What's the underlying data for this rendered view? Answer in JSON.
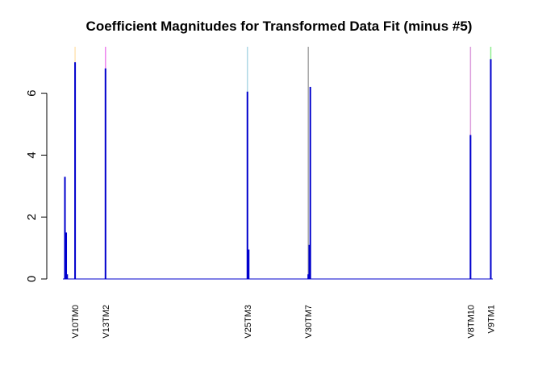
{
  "chart_data": {
    "type": "bar",
    "title": "Coefficient Magnitudes for Transformed Data Fit (minus #5)",
    "xlabel": "",
    "ylabel": "",
    "ylim": [
      0,
      7.5
    ],
    "y_ticks": [
      0,
      2,
      4,
      6
    ],
    "x_range": [
      0,
      212
    ],
    "bar_color": "#0000CD",
    "labeled_categories": [
      {
        "label": "V10TM0",
        "x": 6
      },
      {
        "label": "V13TM2",
        "x": 21
      },
      {
        "label": "V25TM3",
        "x": 91
      },
      {
        "label": "V30TM7",
        "x": 121
      },
      {
        "label": "V8TM10",
        "x": 201
      },
      {
        "label": "V9TM1",
        "x": 211
      }
    ],
    "highlight_lines": [
      {
        "x": 6,
        "color": "#FFE4B5"
      },
      {
        "x": 21,
        "color": "#EE82EE"
      },
      {
        "x": 91,
        "color": "#ADD8E6"
      },
      {
        "x": 121,
        "color": "#A9A9A9"
      },
      {
        "x": 201,
        "color": "#DDA0DD"
      },
      {
        "x": 211,
        "color": "#90EE90"
      }
    ],
    "bars": [
      {
        "x": 1,
        "value": 3.3
      },
      {
        "x": 1.6,
        "value": 1.5
      },
      {
        "x": 2.1,
        "value": 0.15
      },
      {
        "x": 6,
        "value": 7.0
      },
      {
        "x": 21,
        "value": 6.8
      },
      {
        "x": 91,
        "value": 6.05
      },
      {
        "x": 91.6,
        "value": 0.95
      },
      {
        "x": 121,
        "value": 0.15
      },
      {
        "x": 121.5,
        "value": 1.1
      },
      {
        "x": 122,
        "value": 6.2
      },
      {
        "x": 201,
        "value": 4.65
      },
      {
        "x": 211,
        "value": 7.1
      }
    ]
  }
}
